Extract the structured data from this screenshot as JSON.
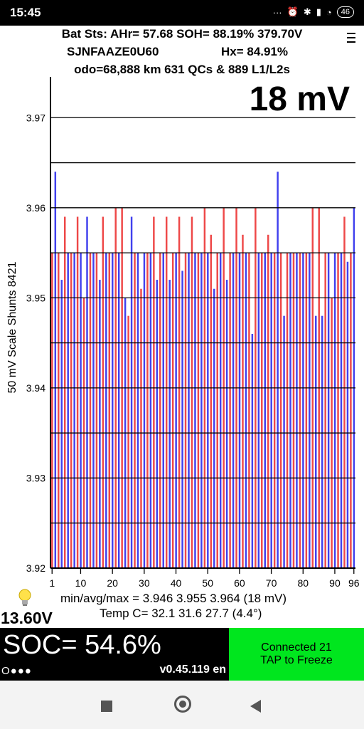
{
  "status_bar": {
    "time": "15:45",
    "indicators": "···",
    "battery": "46"
  },
  "header": {
    "line1": "Bat Sts: AHr= 57.68 SOH= 88.19% 379.70V",
    "vin": "SJNFAAZE0U60",
    "hx": "Hx= 84.91%",
    "line3": "odo=68,888 km 631 QCs & 889 L1/L2s"
  },
  "menu_icon": "hamburger-icon",
  "chart_data": {
    "type": "bar",
    "delta_label": "18 mV",
    "ylabel": "50 mV Scale   Shunts 8421",
    "ylim": [
      3.92,
      3.975
    ],
    "yticks": [
      3.92,
      3.93,
      3.94,
      3.95,
      3.96,
      3.97
    ],
    "xticks": [
      1,
      10,
      20,
      30,
      40,
      50,
      60,
      70,
      80,
      90,
      96
    ],
    "colors": {
      "odd": "#4040ee",
      "even": "#ee4848",
      "grid": "#000000"
    },
    "cells": [
      1,
      2,
      3,
      4,
      5,
      6,
      7,
      8,
      9,
      10,
      11,
      12,
      13,
      14,
      15,
      16,
      17,
      18,
      19,
      20,
      21,
      22,
      23,
      24,
      25,
      26,
      27,
      28,
      29,
      30,
      31,
      32,
      33,
      34,
      35,
      36,
      37,
      38,
      39,
      40,
      41,
      42,
      43,
      44,
      45,
      46,
      47,
      48,
      49,
      50,
      51,
      52,
      53,
      54,
      55,
      56,
      57,
      58,
      59,
      60,
      61,
      62,
      63,
      64,
      65,
      66,
      67,
      68,
      69,
      70,
      71,
      72,
      73,
      74,
      75,
      76,
      77,
      78,
      79,
      80,
      81,
      82,
      83,
      84,
      85,
      86,
      87,
      88,
      89,
      90,
      91,
      92,
      93,
      94,
      95,
      96
    ],
    "values": [
      3.955,
      3.964,
      3.955,
      3.952,
      3.959,
      3.955,
      3.955,
      3.955,
      3.959,
      3.955,
      3.95,
      3.959,
      3.955,
      3.955,
      3.955,
      3.952,
      3.959,
      3.955,
      3.955,
      3.955,
      3.96,
      3.955,
      3.96,
      3.95,
      3.948,
      3.959,
      3.955,
      3.955,
      3.951,
      3.955,
      3.955,
      3.955,
      3.959,
      3.952,
      3.955,
      3.955,
      3.959,
      3.952,
      3.955,
      3.955,
      3.959,
      3.953,
      3.955,
      3.955,
      3.959,
      3.955,
      3.955,
      3.955,
      3.96,
      3.955,
      3.957,
      3.951,
      3.955,
      3.955,
      3.96,
      3.952,
      3.955,
      3.955,
      3.96,
      3.955,
      3.957,
      3.955,
      3.955,
      3.946,
      3.96,
      3.955,
      3.955,
      3.955,
      3.957,
      3.955,
      3.955,
      3.964,
      3.955,
      3.948,
      3.955,
      3.955,
      3.955,
      3.955,
      3.955,
      3.955,
      3.955,
      3.955,
      3.96,
      3.948,
      3.96,
      3.948,
      3.955,
      3.955,
      3.95,
      3.955,
      3.955,
      3.955,
      3.959,
      3.954,
      3.955,
      3.96
    ]
  },
  "stats": {
    "minavgmax": "min/avg/max = 3.946 3.955 3.964  (18 mV)",
    "temp": "Temp C= 32.1  31.6  27.7  (4.4°)",
    "voltage": "13.60V",
    "bulb_icon": "lightbulb-icon"
  },
  "soc": {
    "text": "SOC= 54.6%",
    "dots": "O●●●",
    "version": "v0.45.119 en"
  },
  "connect_button": {
    "line1": "Connected 21",
    "line2": "TAP to Freeze"
  },
  "nav": {
    "recents": "recents-icon",
    "home": "home-icon",
    "back": "back-icon"
  }
}
